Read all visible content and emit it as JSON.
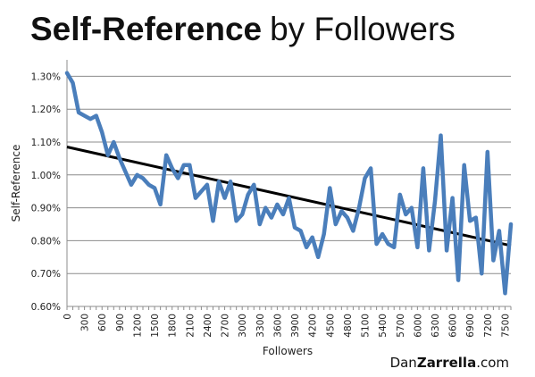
{
  "title": {
    "bold": "Self-Reference",
    "regular": "by Followers"
  },
  "branding": {
    "regular": "Dan",
    "bold": "Zarrella",
    "suffix": ".com"
  },
  "chart_data": {
    "type": "line",
    "xlabel": "Followers",
    "ylabel": "Self-Reference",
    "ylim": [
      0.006,
      0.0135
    ],
    "ytick_values": [
      0.006,
      0.007,
      0.008,
      0.009,
      0.01,
      0.011,
      0.012,
      0.013
    ],
    "ytick_labels": [
      "0.60%",
      "0.70%",
      "0.80%",
      "0.90%",
      "1.00%",
      "1.10%",
      "1.20%",
      "1.30%"
    ],
    "xlim": [
      0,
      7600
    ],
    "xtick_values": [
      0,
      300,
      600,
      900,
      1200,
      1500,
      1800,
      2100,
      2400,
      2700,
      3000,
      3300,
      3600,
      3900,
      4200,
      4500,
      4800,
      5100,
      5400,
      5700,
      6000,
      6300,
      6600,
      6900,
      7200,
      7500
    ],
    "xtick_labels": [
      "0",
      "300",
      "600",
      "900",
      "1200",
      "1500",
      "1800",
      "2100",
      "2400",
      "2700",
      "3000",
      "3300",
      "3600",
      "3900",
      "4200",
      "4500",
      "4800",
      "5100",
      "5400",
      "5700",
      "6000",
      "6300",
      "6600",
      "6900",
      "7200",
      "7500"
    ],
    "grid": "horizontal",
    "series": [
      {
        "color": "#4a7ebb",
        "x": [
          0,
          100,
          200,
          300,
          400,
          500,
          600,
          700,
          800,
          900,
          1000,
          1100,
          1200,
          1300,
          1400,
          1500,
          1600,
          1700,
          1800,
          1900,
          2000,
          2100,
          2200,
          2300,
          2400,
          2500,
          2600,
          2700,
          2800,
          2900,
          3000,
          3100,
          3200,
          3300,
          3400,
          3500,
          3600,
          3700,
          3800,
          3900,
          4000,
          4100,
          4200,
          4300,
          4400,
          4500,
          4600,
          4700,
          4800,
          4900,
          5000,
          5100,
          5200,
          5300,
          5400,
          5500,
          5600,
          5700,
          5800,
          5900,
          6000,
          6100,
          6200,
          6300,
          6400,
          6500,
          6600,
          6700,
          6800,
          6900,
          7000,
          7100,
          7200,
          7300,
          7400,
          7500,
          7600
        ],
        "y": [
          0.0131,
          0.0128,
          0.0119,
          0.0118,
          0.0117,
          0.0118,
          0.0113,
          0.0106,
          0.011,
          0.0105,
          0.0101,
          0.0097,
          0.01,
          0.0099,
          0.0097,
          0.0096,
          0.0091,
          0.0106,
          0.0102,
          0.0099,
          0.0103,
          0.0103,
          0.0093,
          0.0095,
          0.0097,
          0.0086,
          0.0098,
          0.0093,
          0.0098,
          0.0086,
          0.0088,
          0.0094,
          0.0097,
          0.0085,
          0.009,
          0.0087,
          0.0091,
          0.0088,
          0.0093,
          0.0084,
          0.0083,
          0.0078,
          0.0081,
          0.0075,
          0.0082,
          0.0096,
          0.0085,
          0.0089,
          0.0087,
          0.0083,
          0.009,
          0.0099,
          0.0102,
          0.0079,
          0.0082,
          0.0079,
          0.0078,
          0.0094,
          0.0088,
          0.009,
          0.0078,
          0.0102,
          0.0077,
          0.0092,
          0.0112,
          0.0077,
          0.0093,
          0.0068,
          0.0103,
          0.0086,
          0.0087,
          0.007,
          0.0107,
          0.0074,
          0.0083,
          0.0064,
          0.0085
        ]
      }
    ],
    "trendline": {
      "color": "#000000",
      "x": [
        0,
        7600
      ],
      "y": [
        0.01085,
        0.00785
      ]
    }
  }
}
